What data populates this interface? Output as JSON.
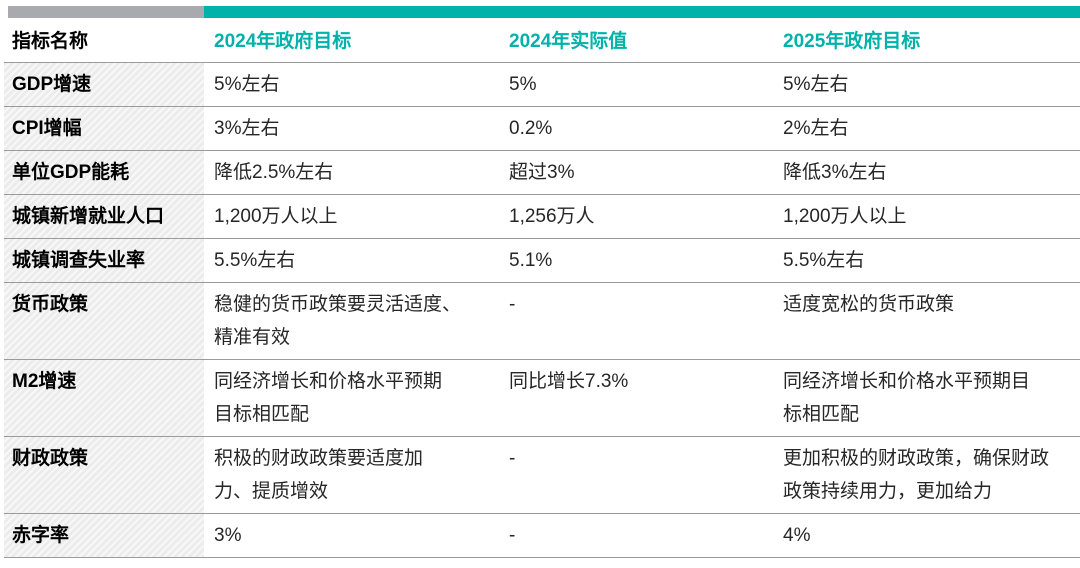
{
  "theme": {
    "accent_teal": "#00b2a9",
    "bar_gray": "#a8aaad",
    "separator_gray": "#9b9b9b",
    "indicator_column_bg": "#ececec",
    "body_text": "#262626"
  },
  "chart_data": {
    "type": "table",
    "title": "",
    "columns": [
      {
        "key": "indicator",
        "label": "指标名称"
      },
      {
        "key": "target2024",
        "label": "2024年政府目标"
      },
      {
        "key": "actual2024",
        "label": "2024年实际值"
      },
      {
        "key": "target2025",
        "label": "2025年政府目标"
      }
    ],
    "rows": [
      {
        "indicator": "GDP增速",
        "target2024": "5%左右",
        "actual2024": "5%",
        "target2025": "5%左右"
      },
      {
        "indicator": "CPI增幅",
        "target2024": "3%左右",
        "actual2024": "0.2%",
        "target2025": "2%左右"
      },
      {
        "indicator": "单位GDP能耗",
        "target2024": "降低2.5%左右",
        "actual2024": "超过3%",
        "target2025": "降低3%左右"
      },
      {
        "indicator": "城镇新增就业人口",
        "target2024": "1,200万人以上",
        "actual2024": "1,256万人",
        "target2025": "1,200万人以上"
      },
      {
        "indicator": "城镇调查失业率",
        "target2024": "5.5%左右",
        "actual2024": "5.1%",
        "target2025": "5.5%左右"
      },
      {
        "indicator": "货币政策",
        "target2024": "稳健的货币政策要灵活适度、\n精准有效",
        "actual2024": "-",
        "target2025": "适度宽松的货币政策"
      },
      {
        "indicator": "M2增速",
        "target2024": "同经济增长和价格水平预期\n目标相匹配",
        "actual2024": "同比增长7.3%",
        "target2025": "同经济增长和价格水平预期目\n标相匹配"
      },
      {
        "indicator": "财政政策",
        "target2024": "积极的财政政策要适度加\n力、提质增效",
        "actual2024": "-",
        "target2025": "更加积极的财政政策，确保财政\n政策持续用力，更加给力"
      },
      {
        "indicator": "赤字率",
        "target2024": "3%",
        "actual2024": "-",
        "target2025": "4%"
      }
    ]
  }
}
